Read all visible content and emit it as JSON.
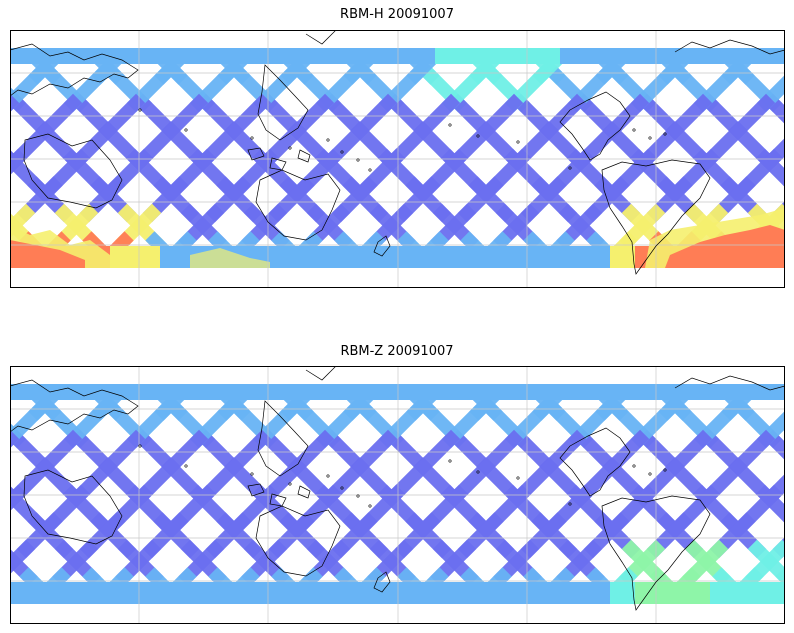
{
  "panels": [
    {
      "title": "RBM-H 20091007",
      "hot_south": true
    },
    {
      "title": "RBM-Z 20091007",
      "hot_south": false
    }
  ],
  "colors": {
    "track_main": "#6b6ff0",
    "track_light": "#68b4f5",
    "track_cyan": "#6ff0e6",
    "track_green": "#8ef5a8",
    "track_yellow": "#f5f06e",
    "track_orange": "#ff7d55",
    "coast": "#000000",
    "grid": "#c8c8c8"
  }
}
